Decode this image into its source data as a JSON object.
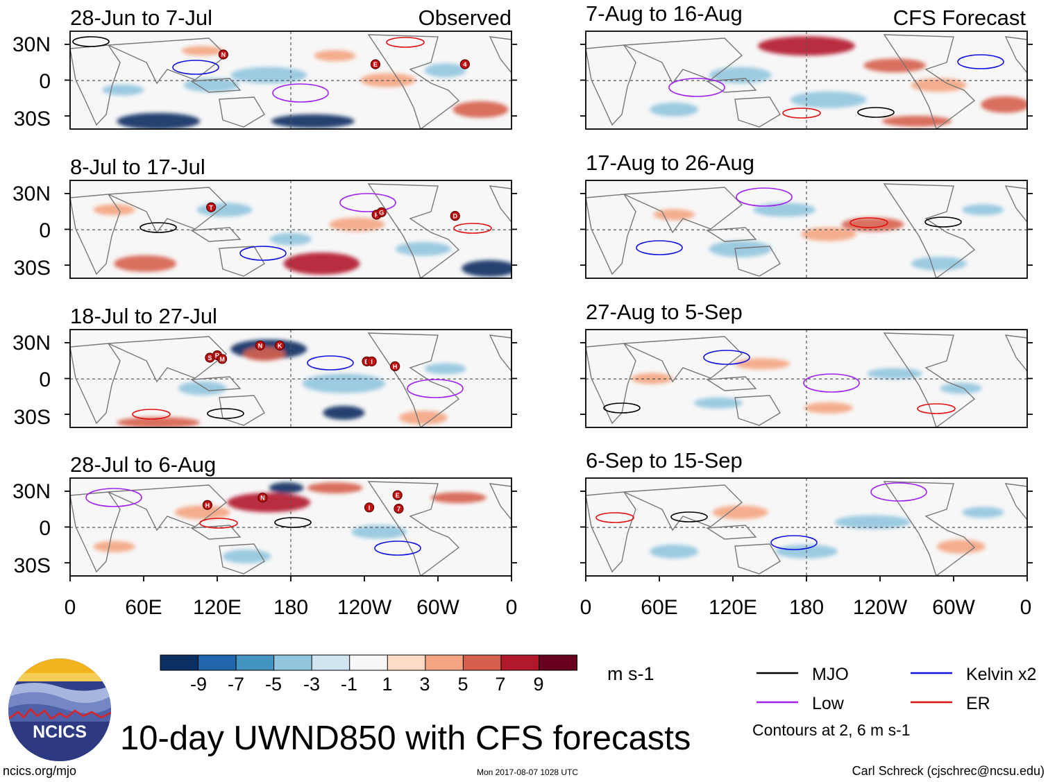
{
  "figure_title": "10-day UWND850 with CFS forecasts",
  "footer": {
    "left": "ncics.org/mjo",
    "center": "Mon 2017-08-07 1028 UTC",
    "right": "Carl Schreck (cjschrec@ncsu.edu)"
  },
  "logo": {
    "text": "NCICS"
  },
  "column_headers": {
    "left": "Observed",
    "right": "CFS Forecast"
  },
  "y_ticks": [
    "30N",
    "0",
    "30S"
  ],
  "x_ticks": [
    "0",
    "60E",
    "120E",
    "180",
    "120W",
    "60W",
    "0"
  ],
  "panels": {
    "observed": [
      {
        "title": "28-Jun to 7-Jul",
        "storms": [
          {
            "letter": "N",
            "lon": 125,
            "lat": 21
          },
          {
            "letter": "E",
            "lon": 249,
            "lat": 13
          },
          {
            "letter": "4",
            "lon": 322,
            "lat": 13
          }
        ]
      },
      {
        "title": "8-Jul to 17-Jul",
        "storms": [
          {
            "letter": "T",
            "lon": 115,
            "lat": 18
          },
          {
            "letter": "F",
            "lon": 250,
            "lat": 12
          },
          {
            "letter": "G",
            "lon": 254,
            "lat": 14
          },
          {
            "letter": "D",
            "lon": 314,
            "lat": 11
          }
        ]
      },
      {
        "title": "18-Jul to 27-Jul",
        "storms": [
          {
            "letter": "S",
            "lon": 114,
            "lat": 17
          },
          {
            "letter": "R",
            "lon": 120,
            "lat": 19
          },
          {
            "letter": "M",
            "lon": 124,
            "lat": 16
          },
          {
            "letter": "N",
            "lon": 155,
            "lat": 27
          },
          {
            "letter": "K",
            "lon": 171,
            "lat": 27
          },
          {
            "letter": "B",
            "lon": 242,
            "lat": 14
          },
          {
            "letter": "I",
            "lon": 246,
            "lat": 14
          },
          {
            "letter": "H",
            "lon": 265,
            "lat": 10
          }
        ]
      },
      {
        "title": "28-Jul to 6-Aug",
        "storms": [
          {
            "letter": "H",
            "lon": 112,
            "lat": 18
          },
          {
            "letter": "N",
            "lon": 157,
            "lat": 24
          },
          {
            "letter": "E",
            "lon": 267,
            "lat": 26
          },
          {
            "letter": "I",
            "lon": 244,
            "lat": 16
          },
          {
            "letter": "7",
            "lon": 268,
            "lat": 15
          }
        ]
      }
    ],
    "forecast": [
      {
        "title": "7-Aug to 16-Aug",
        "storms": []
      },
      {
        "title": "17-Aug to 26-Aug",
        "storms": []
      },
      {
        "title": "27-Aug to 5-Sep",
        "storms": []
      },
      {
        "title": "6-Sep to 15-Sep",
        "storms": []
      }
    ]
  },
  "colorbar": {
    "unit": "m s-1",
    "labels": [
      "-9",
      "-7",
      "-5",
      "-3",
      "-1",
      "1",
      "3",
      "5",
      "7",
      "9"
    ],
    "colors": [
      "#0b2f63",
      "#2166ac",
      "#4393c3",
      "#92c5de",
      "#d1e5f0",
      "#f7f7f7",
      "#fddbc7",
      "#f4a582",
      "#d6604d",
      "#b2182b",
      "#67001f"
    ]
  },
  "legend": {
    "items": [
      {
        "label": "MJO",
        "color": "#000000"
      },
      {
        "label": "Kelvin x2",
        "color": "#1010e0"
      },
      {
        "label": "Low",
        "color": "#a020f0"
      },
      {
        "label": "ER",
        "color": "#e01010"
      }
    ],
    "note": "Contours at 2, 6 m s-1"
  }
}
